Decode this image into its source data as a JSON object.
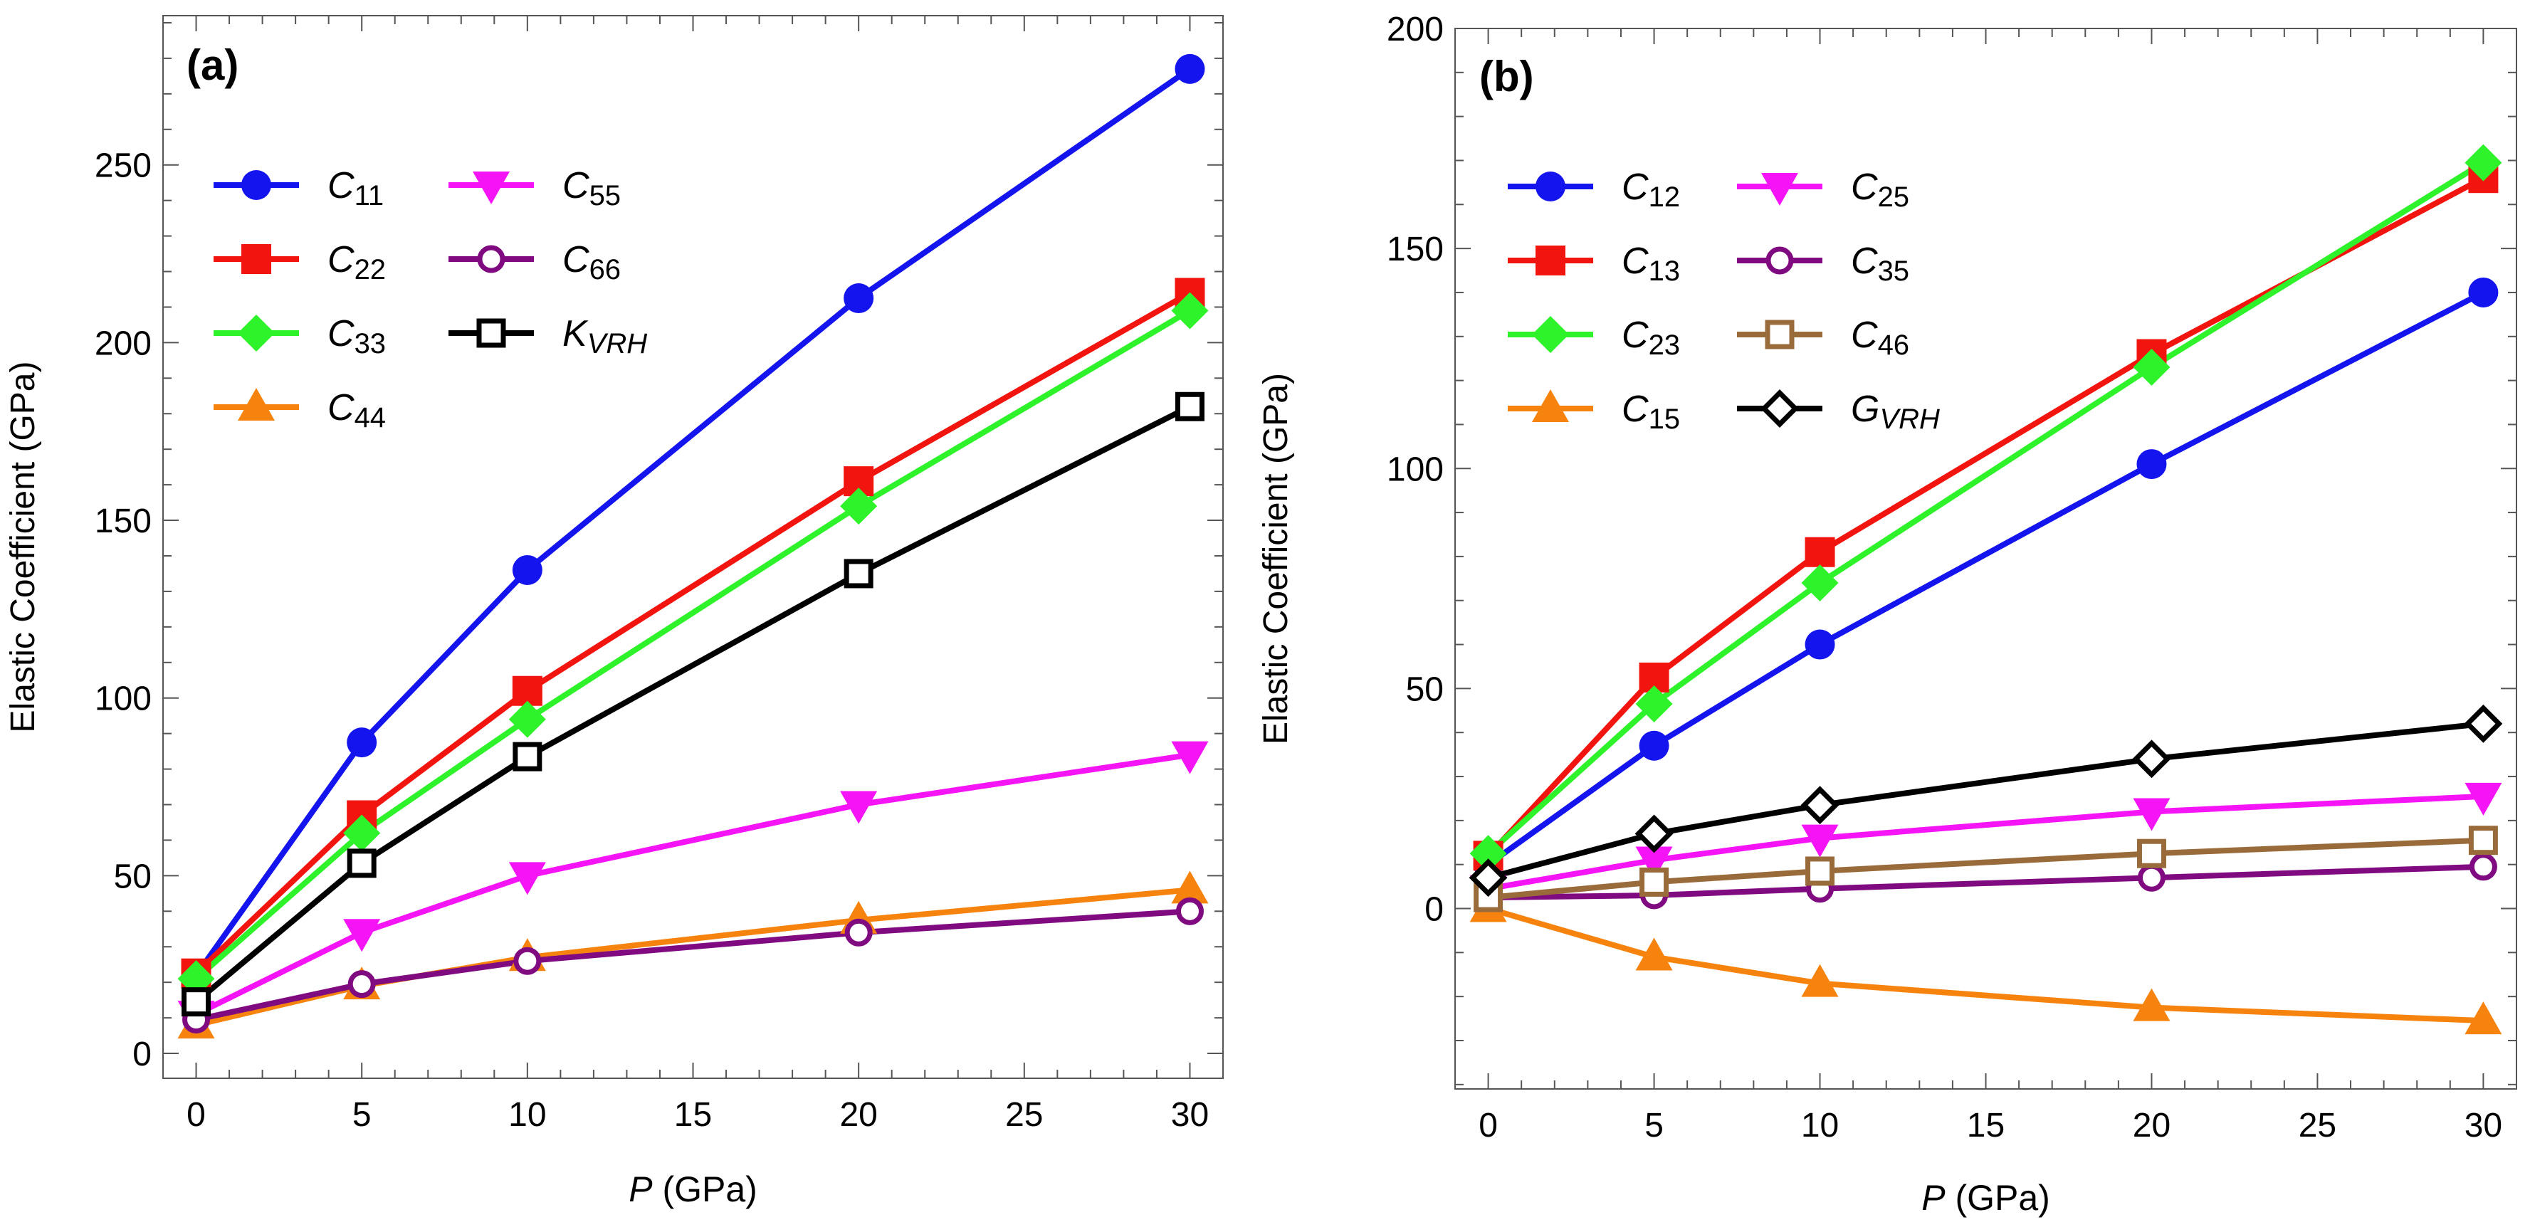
{
  "figure_labels": {
    "a": "(a)",
    "b": "(b)"
  },
  "colors": {
    "blue": "#1414ee",
    "red": "#f2150f",
    "green": "#2ef22a",
    "orange": "#f7830f",
    "magenta": "#f514f5",
    "purple": "#800a80",
    "black": "#000000",
    "brown": "#9a6b3a"
  },
  "chart_data": [
    {
      "type": "line",
      "panel": "(a)",
      "xlabel_italic": "P",
      "xlabel_rest": " (GPa)",
      "ylabel": "Elastic Coefficient (GPa)",
      "xlim": [
        -1,
        31
      ],
      "ylim": [
        -7,
        292
      ],
      "xticks": [
        0,
        5,
        10,
        15,
        20,
        25,
        30
      ],
      "yticks": [
        0,
        50,
        100,
        150,
        200,
        250
      ],
      "x": [
        0,
        5,
        10,
        20,
        30
      ],
      "legend_position": "top-left",
      "legend_columns": 2,
      "series": [
        {
          "name": "C",
          "sub": "11",
          "color": "#1414ee",
          "marker": "circle",
          "values": [
            22,
            87.5,
            136,
            212.5,
            277
          ]
        },
        {
          "name": "C",
          "sub": "22",
          "color": "#f2150f",
          "marker": "square",
          "values": [
            22.5,
            67,
            102,
            161,
            214
          ]
        },
        {
          "name": "C",
          "sub": "33",
          "color": "#2ef22a",
          "marker": "diamond",
          "values": [
            21,
            62,
            94,
            154,
            209
          ]
        },
        {
          "name": "C",
          "sub": "44",
          "color": "#f7830f",
          "marker": "triangle",
          "values": [
            8,
            19,
            27,
            37.5,
            46
          ]
        },
        {
          "name": "C",
          "sub": "55",
          "color": "#f514f5",
          "marker": "triangle-down",
          "values": [
            11,
            34,
            50,
            70,
            84
          ]
        },
        {
          "name": "C",
          "sub": "66",
          "color": "#800a80",
          "marker": "open-circle",
          "values": [
            9.5,
            19.5,
            26,
            34,
            40
          ]
        },
        {
          "name": "K",
          "sub": "VRH",
          "color": "#000000",
          "marker": "open-square",
          "values": [
            14.5,
            53.5,
            83.5,
            135,
            182
          ]
        }
      ]
    },
    {
      "type": "line",
      "panel": "(b)",
      "xlabel_italic": "P",
      "xlabel_rest": " (GPa)",
      "ylabel": "Elastic Coefficient (GPa)",
      "xlim": [
        -1,
        31
      ],
      "ylim": [
        -41,
        200
      ],
      "xticks": [
        0,
        5,
        10,
        15,
        20,
        25,
        30
      ],
      "yticks": [
        0,
        50,
        100,
        150,
        200
      ],
      "x": [
        0,
        5,
        10,
        20,
        30
      ],
      "legend_position": "top-left",
      "legend_columns": 2,
      "series": [
        {
          "name": "C",
          "sub": "12",
          "color": "#1414ee",
          "marker": "circle",
          "values": [
            10,
            37,
            60,
            101,
            140
          ]
        },
        {
          "name": "C",
          "sub": "13",
          "color": "#f2150f",
          "marker": "square",
          "values": [
            12,
            52.5,
            81,
            126,
            166
          ]
        },
        {
          "name": "C",
          "sub": "23",
          "color": "#2ef22a",
          "marker": "diamond",
          "values": [
            12.5,
            46.5,
            74,
            123,
            169.5
          ]
        },
        {
          "name": "C",
          "sub": "15",
          "color": "#f7830f",
          "marker": "triangle",
          "values": [
            0,
            -11,
            -17,
            -22.5,
            -25.5
          ]
        },
        {
          "name": "C",
          "sub": "25",
          "color": "#f514f5",
          "marker": "triangle-down",
          "values": [
            4.5,
            11,
            16,
            22,
            25.5
          ]
        },
        {
          "name": "C",
          "sub": "35",
          "color": "#800a80",
          "marker": "open-circle",
          "values": [
            2.5,
            3,
            4.5,
            7,
            9.5
          ]
        },
        {
          "name": "C",
          "sub": "46",
          "color": "#9a6b3a",
          "marker": "open-square",
          "values": [
            2.5,
            6,
            8.5,
            12.5,
            15.5
          ]
        },
        {
          "name": "G",
          "sub": "VRH",
          "color": "#000000",
          "marker": "open-diamond",
          "values": [
            7,
            17,
            23.5,
            34,
            42
          ]
        }
      ]
    }
  ]
}
